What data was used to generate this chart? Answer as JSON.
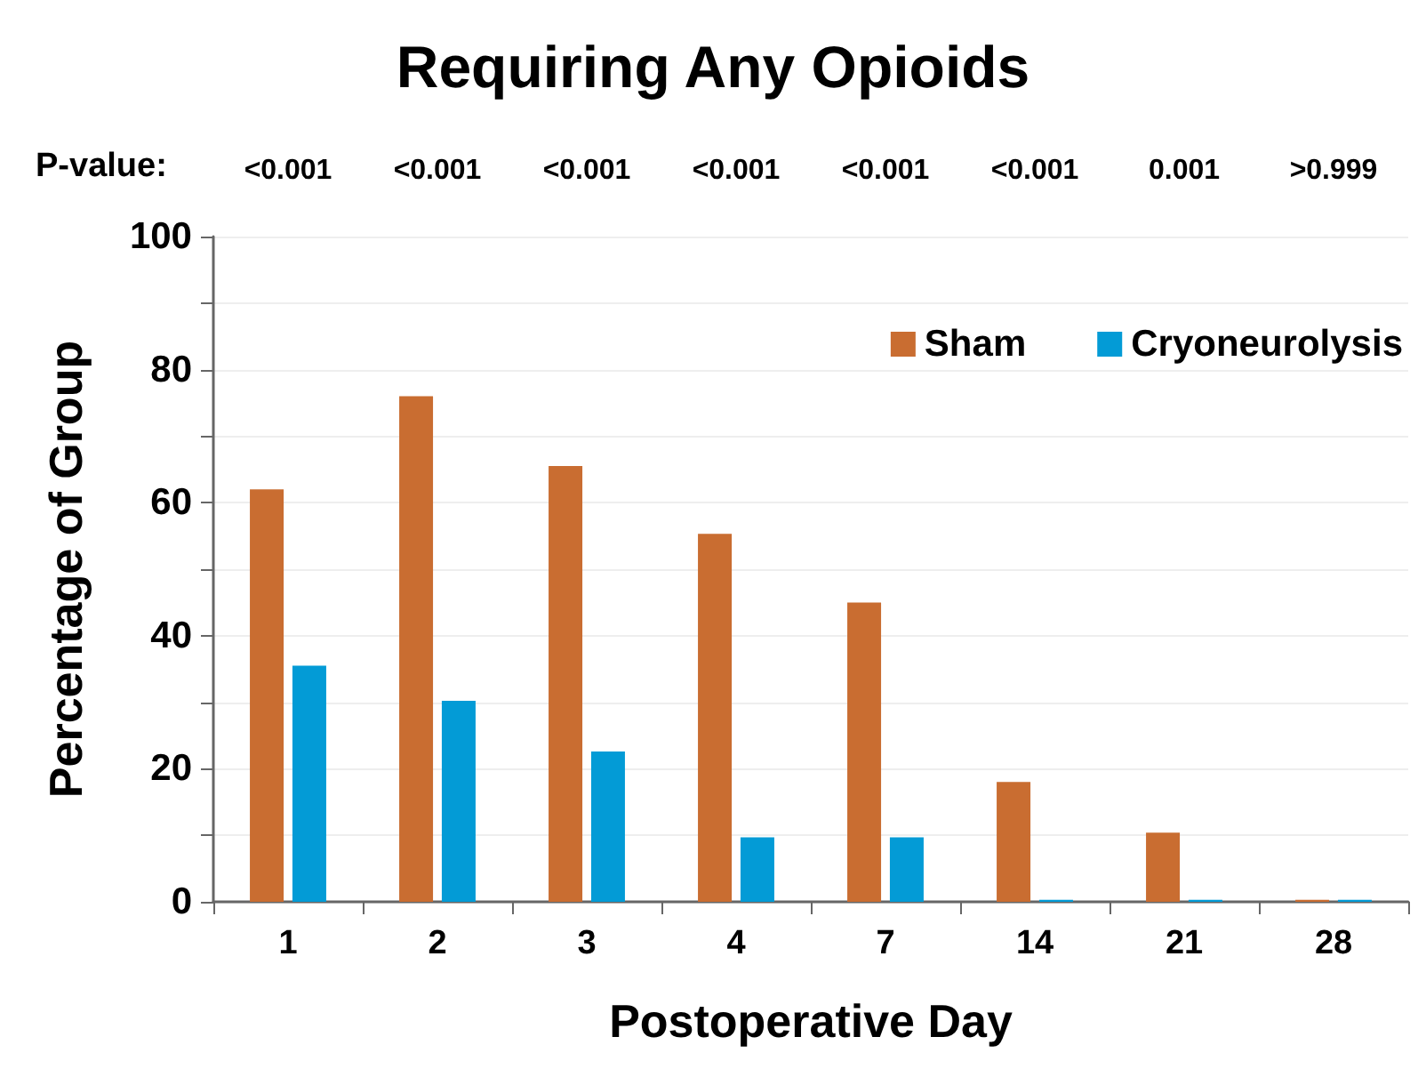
{
  "chart_data": {
    "type": "bar",
    "title": "Requiring Any Opioids",
    "xlabel": "Postoperative Day",
    "ylabel": "Percentage of Group",
    "categories": [
      "1",
      "2",
      "3",
      "4",
      "7",
      "14",
      "21",
      "28"
    ],
    "series": [
      {
        "name": "Sham",
        "color": "#c96d31",
        "values": [
          62,
          76,
          65.5,
          55.3,
          45,
          18,
          10.4,
          0.3
        ]
      },
      {
        "name": "Cryoneurolysis",
        "color": "#039bd6",
        "values": [
          35.5,
          30.2,
          22.6,
          9.7,
          9.7,
          0.3,
          0.3,
          0.3
        ]
      }
    ],
    "ylim": [
      0,
      100
    ],
    "yticks": [
      0,
      {
        "value": 10,
        "label": null
      },
      20,
      {
        "value": 30,
        "label": null
      },
      40,
      {
        "value": 50,
        "label": null
      },
      60,
      {
        "value": 70,
        "label": null
      },
      80,
      {
        "value": 90,
        "label": null
      },
      100
    ],
    "grid": "y",
    "legend": "top right",
    "annotations": [
      "P-value:",
      "<0.001",
      "<0.001",
      "<0.001",
      "<0.001",
      "<0.001",
      "<0.001",
      "0.001",
      ">0.999"
    ]
  }
}
